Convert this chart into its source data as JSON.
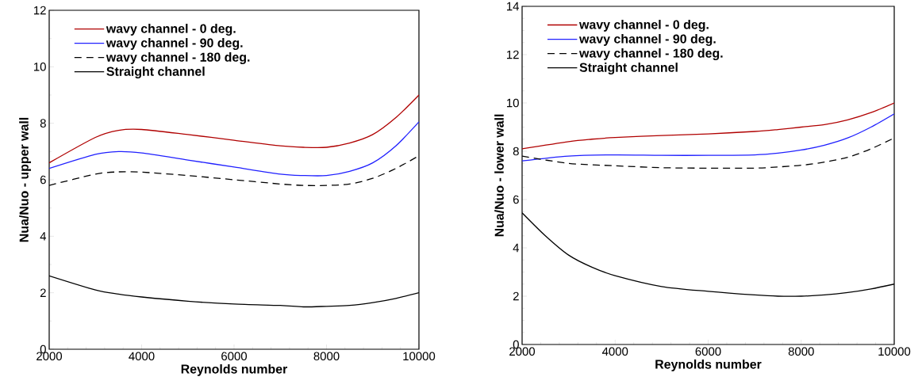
{
  "chart_data": [
    {
      "type": "line",
      "xlabel": "Reynolds number",
      "ylabel": "Nua/Nuo - upper wall",
      "xlim": [
        2000,
        10000
      ],
      "ylim": [
        0,
        12
      ],
      "xticks": [
        2000,
        4000,
        6000,
        8000,
        10000
      ],
      "yticks": [
        0,
        2,
        4,
        6,
        8,
        10,
        12
      ],
      "legend": "top left",
      "grid": false,
      "series": [
        {
          "name": "wavy channel - 0 deg.",
          "color": "#b00000",
          "line_style": "solid",
          "x": [
            2000,
            3000,
            3500,
            4000,
            5000,
            6000,
            7000,
            7500,
            8000,
            8500,
            9000,
            9500,
            10000
          ],
          "values": [
            6.6,
            7.5,
            7.75,
            7.78,
            7.6,
            7.4,
            7.2,
            7.15,
            7.15,
            7.3,
            7.6,
            8.2,
            9.0
          ]
        },
        {
          "name": "wavy channel - 90 deg.",
          "color": "#2020ff",
          "line_style": "solid",
          "x": [
            2000,
            3000,
            3500,
            4000,
            5000,
            6000,
            7000,
            7500,
            8000,
            8500,
            9000,
            9500,
            10000
          ],
          "values": [
            6.4,
            6.9,
            7.0,
            6.95,
            6.7,
            6.45,
            6.2,
            6.15,
            6.15,
            6.3,
            6.6,
            7.2,
            8.05
          ]
        },
        {
          "name": "wavy channel - 180 deg.",
          "color": "#000000",
          "line_style": "dashed",
          "x": [
            2000,
            3000,
            3500,
            4000,
            5000,
            6000,
            7000,
            7500,
            8000,
            8500,
            9000,
            9500,
            10000
          ],
          "values": [
            5.8,
            6.2,
            6.28,
            6.27,
            6.15,
            6.0,
            5.85,
            5.8,
            5.8,
            5.85,
            6.05,
            6.4,
            6.85
          ]
        },
        {
          "name": "Straight channel",
          "color": "#000000",
          "line_style": "solid",
          "x": [
            2000,
            3000,
            3500,
            4000,
            5000,
            6000,
            7000,
            7500,
            8000,
            8500,
            9000,
            9500,
            10000
          ],
          "values": [
            2.6,
            2.1,
            1.95,
            1.85,
            1.7,
            1.6,
            1.55,
            1.5,
            1.52,
            1.55,
            1.65,
            1.8,
            2.0
          ]
        }
      ]
    },
    {
      "type": "line",
      "xlabel": "Reynolds number",
      "ylabel": "Nua/Nuo - lower wall",
      "xlim": [
        2000,
        10000
      ],
      "ylim": [
        0,
        14
      ],
      "xticks": [
        2000,
        4000,
        6000,
        8000,
        10000
      ],
      "yticks": [
        0,
        2,
        4,
        6,
        8,
        10,
        12,
        14
      ],
      "legend": "top left",
      "grid": false,
      "series": [
        {
          "name": "wavy channel - 0 deg.",
          "color": "#b00000",
          "line_style": "solid",
          "x": [
            2000,
            3000,
            3500,
            4000,
            5000,
            6000,
            7000,
            7500,
            8000,
            8500,
            9000,
            9500,
            10000
          ],
          "values": [
            8.1,
            8.4,
            8.5,
            8.57,
            8.65,
            8.72,
            8.82,
            8.9,
            9.0,
            9.1,
            9.3,
            9.6,
            10.0
          ]
        },
        {
          "name": "wavy channel - 90 deg.",
          "color": "#2020ff",
          "line_style": "solid",
          "x": [
            2000,
            3000,
            4000,
            5000,
            6000,
            7000,
            7500,
            8000,
            8500,
            9000,
            9500,
            10000
          ],
          "values": [
            7.6,
            7.8,
            7.85,
            7.83,
            7.83,
            7.85,
            7.92,
            8.05,
            8.25,
            8.55,
            9.0,
            9.55
          ]
        },
        {
          "name": "wavy channel - 180 deg.",
          "color": "#000000",
          "line_style": "dashed",
          "x": [
            2000,
            3000,
            4000,
            5000,
            6000,
            7000,
            7500,
            8000,
            8500,
            9000,
            9500,
            10000
          ],
          "values": [
            7.8,
            7.5,
            7.4,
            7.32,
            7.3,
            7.3,
            7.35,
            7.42,
            7.55,
            7.75,
            8.1,
            8.55
          ]
        },
        {
          "name": "Straight channel",
          "color": "#000000",
          "line_style": "solid",
          "x": [
            2000,
            2500,
            3000,
            3500,
            4000,
            5000,
            6000,
            7000,
            7500,
            8000,
            8500,
            9000,
            9500,
            10000
          ],
          "values": [
            5.45,
            4.5,
            3.7,
            3.2,
            2.85,
            2.4,
            2.2,
            2.05,
            2.0,
            2.0,
            2.05,
            2.15,
            2.3,
            2.5
          ]
        }
      ]
    }
  ]
}
